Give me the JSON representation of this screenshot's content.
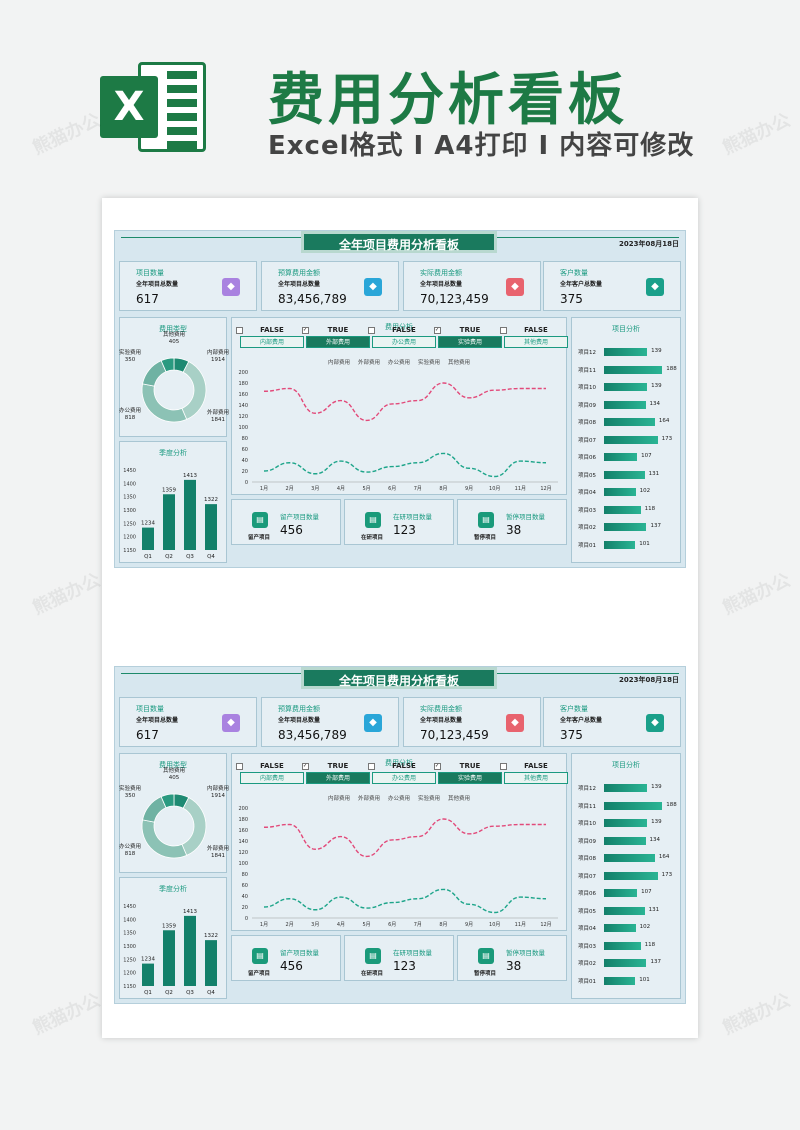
{
  "header": {
    "title": "费用分析看板",
    "subtitle": "Excel格式 Ⅰ A4打印 Ⅰ 内容可修改",
    "logo_letter": "X"
  },
  "dashboard": {
    "title": "全年项目费用分析看板",
    "date": "2023年08月18日",
    "kpis": [
      {
        "title": "项目数量",
        "sub": "全年项目总数量",
        "value": "617",
        "icon": "layers-icon",
        "color": "#a982e0"
      },
      {
        "title": "预算费用金额",
        "sub": "全年项目总数量",
        "value": "83,456,789",
        "icon": "chart-icon",
        "color": "#2aa6d8"
      },
      {
        "title": "实际费用金额",
        "sub": "全年项目总数量",
        "value": "70,123,459",
        "icon": "database-icon",
        "color": "#e8636e"
      },
      {
        "title": "客户数量",
        "sub": "全年客户总数量",
        "value": "375",
        "icon": "user-icon",
        "color": "#1aa08a"
      }
    ],
    "fee_types": {
      "title": "费用类型",
      "labels": [
        {
          "name": "其他费用",
          "value": "405"
        },
        {
          "name": "内部费用",
          "value": "1914"
        },
        {
          "name": "外部费用",
          "value": "1841"
        },
        {
          "name": "办公费用",
          "value": "818"
        },
        {
          "name": "实验费用",
          "value": "350"
        }
      ]
    },
    "quarterly": {
      "title": "季度分析"
    },
    "cost_analysis": {
      "title": "费用分析",
      "checkboxes": [
        {
          "state": "FALSE",
          "label": "内部费用",
          "checked": false
        },
        {
          "state": "TRUE",
          "label": "外部费用",
          "checked": true
        },
        {
          "state": "FALSE",
          "label": "办公费用",
          "checked": false
        },
        {
          "state": "TRUE",
          "label": "实验费用",
          "checked": true
        },
        {
          "state": "FALSE",
          "label": "其他费用",
          "checked": false
        }
      ],
      "legend": [
        "内部费用",
        "外部费用",
        "办公费用",
        "实验费用",
        "其他费用"
      ]
    },
    "status": [
      {
        "title": "留产项目数量",
        "sub": "留产项目",
        "value": "456",
        "icon": "box-icon"
      },
      {
        "title": "在研项目数量",
        "sub": "在研项目",
        "value": "123",
        "icon": "box-icon"
      },
      {
        "title": "暂停项目数量",
        "sub": "暂停项目",
        "value": "38",
        "icon": "box-icon"
      }
    ],
    "project_analysis": {
      "title": "项目分析",
      "items": [
        {
          "name": "项目12",
          "value": 139
        },
        {
          "name": "项目11",
          "value": 188
        },
        {
          "name": "项目10",
          "value": 139
        },
        {
          "name": "项目09",
          "value": 134
        },
        {
          "name": "项目08",
          "value": 164
        },
        {
          "name": "项目07",
          "value": 173
        },
        {
          "name": "项目06",
          "value": 107
        },
        {
          "name": "项目05",
          "value": 131
        },
        {
          "name": "项目04",
          "value": 102
        },
        {
          "name": "项目03",
          "value": 118
        },
        {
          "name": "项目02",
          "value": 137
        },
        {
          "name": "项目01",
          "value": 101
        }
      ]
    }
  },
  "chart_data": [
    {
      "type": "pie",
      "title": "费用类型",
      "categories": [
        "其他费用",
        "内部费用",
        "外部费用",
        "办公费用",
        "实验费用"
      ],
      "values": [
        405,
        1914,
        1841,
        818,
        350
      ]
    },
    {
      "type": "bar",
      "title": "季度分析",
      "categories": [
        "Q1",
        "Q2",
        "Q3",
        "Q4"
      ],
      "values": [
        1234,
        1359,
        1413,
        1322
      ],
      "ylim": [
        1150,
        1450
      ],
      "yticks": [
        1150,
        1200,
        1250,
        1300,
        1350,
        1400,
        1450
      ]
    },
    {
      "type": "line",
      "title": "费用分析",
      "categories": [
        "1月",
        "2月",
        "3月",
        "4月",
        "5月",
        "6月",
        "7月",
        "8月",
        "9月",
        "10月",
        "11月",
        "12月"
      ],
      "ylim": [
        0,
        200
      ],
      "yticks": [
        0,
        20,
        40,
        60,
        80,
        100,
        120,
        140,
        160,
        180,
        200
      ],
      "series": [
        {
          "name": "外部费用",
          "color": "#e24a7a",
          "values": [
            165,
            170,
            125,
            148,
            112,
            142,
            148,
            180,
            153,
            167,
            170,
            170
          ]
        },
        {
          "name": "实验费用",
          "color": "#1ea58a",
          "values": [
            20,
            35,
            15,
            38,
            18,
            28,
            35,
            52,
            25,
            10,
            38,
            35
          ]
        }
      ]
    },
    {
      "type": "bar",
      "title": "项目分析",
      "categories": [
        "项目12",
        "项目11",
        "项目10",
        "项目09",
        "项目08",
        "项目07",
        "项目06",
        "项目05",
        "项目04",
        "项目03",
        "项目02",
        "项目01"
      ],
      "values": [
        139,
        188,
        139,
        134,
        164,
        173,
        107,
        131,
        102,
        118,
        137,
        101
      ]
    }
  ]
}
